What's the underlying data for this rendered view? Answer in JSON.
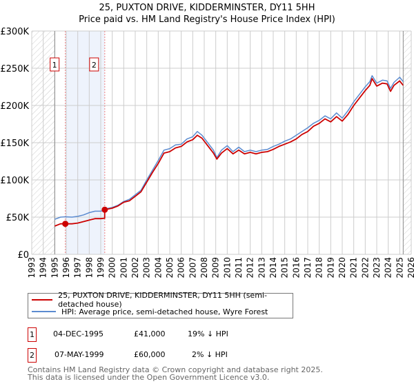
{
  "title_line1": "25, PUXTON DRIVE, KIDDERMINSTER, DY11 5HH",
  "title_line2": "Price paid vs. HM Land Registry's House Price Index (HPI)",
  "legend": {
    "property": "25, PUXTON DRIVE, KIDDERMINSTER, DY11 5HH (semi-detached house)",
    "hpi": "HPI: Average price, semi-detached house, Wyre Forest"
  },
  "transactions": [
    {
      "num": "1",
      "date": "04-DEC-1995",
      "price": "£41,000",
      "hpi_diff": "19% ↓ HPI"
    },
    {
      "num": "2",
      "date": "07-MAY-1999",
      "price": "£60,000",
      "hpi_diff": "2% ↓ HPI"
    }
  ],
  "footer_line1": "Contains HM Land Registry data © Crown copyright and database right 2025.",
  "footer_line2": "This data is licensed under the Open Government Licence v3.0.",
  "colors": {
    "property": "#cc0000",
    "hpi": "#5b8bd0",
    "shade": "#eef3fc"
  },
  "chart_data": {
    "type": "line",
    "xlim": [
      1993,
      2026
    ],
    "ylim": [
      0,
      300000
    ],
    "x_ticks": [
      "1993",
      "1994",
      "1995",
      "1996",
      "1997",
      "1998",
      "1999",
      "2000",
      "2001",
      "2002",
      "2003",
      "2004",
      "2005",
      "2006",
      "2007",
      "2008",
      "2009",
      "2010",
      "2011",
      "2012",
      "2013",
      "2014",
      "2015",
      "2016",
      "2017",
      "2018",
      "2019",
      "2020",
      "2021",
      "2022",
      "2023",
      "2024",
      "2025",
      "2026"
    ],
    "y_ticks": [
      {
        "value": 0,
        "label": "£0"
      },
      {
        "value": 50000,
        "label": "£50K"
      },
      {
        "value": 100000,
        "label": "£100K"
      },
      {
        "value": 150000,
        "label": "£150K"
      },
      {
        "value": 200000,
        "label": "£200K"
      },
      {
        "value": 250000,
        "label": "£250K"
      },
      {
        "value": 300000,
        "label": "£300K"
      }
    ],
    "hatched_ranges": [
      [
        1993,
        1995
      ],
      [
        2025.3,
        2026
      ]
    ],
    "shaded_range": [
      1995.92,
      1999.35
    ],
    "sales": [
      {
        "label": "1",
        "x": 1995.92,
        "y": 41000
      },
      {
        "label": "2",
        "x": 1999.35,
        "y": 60000
      }
    ],
    "x": [
      1995.0,
      1995.5,
      1995.92,
      1996.5,
      1997.0,
      1997.5,
      1998.0,
      1998.5,
      1999.0,
      1999.34,
      1999.35,
      2000.0,
      2000.5,
      2001.0,
      2001.5,
      2002.0,
      2002.5,
      2003.0,
      2003.5,
      2004.0,
      2004.5,
      2005.0,
      2005.5,
      2006.0,
      2006.5,
      2007.0,
      2007.4,
      2007.8,
      2008.3,
      2008.8,
      2009.1,
      2009.5,
      2010.0,
      2010.5,
      2011.0,
      2011.5,
      2012.0,
      2012.5,
      2013.0,
      2013.5,
      2014.0,
      2014.5,
      2015.0,
      2015.5,
      2016.0,
      2016.5,
      2017.0,
      2017.5,
      2018.0,
      2018.5,
      2019.0,
      2019.5,
      2020.0,
      2020.5,
      2021.0,
      2021.5,
      2022.0,
      2022.4,
      2022.6,
      2023.0,
      2023.5,
      2023.9,
      2024.2,
      2024.5,
      2025.0,
      2025.3
    ],
    "series": [
      {
        "name": "25, PUXTON DRIVE, KIDDERMINSTER, DY11 5HH (semi-detached house)",
        "color": "#cc0000",
        "values": [
          38000,
          41000,
          41000,
          41000,
          42000,
          44000,
          46000,
          48000,
          48000,
          48500,
          60000,
          62000,
          65000,
          70000,
          72000,
          78000,
          84000,
          97000,
          110000,
          122000,
          136000,
          138000,
          143000,
          145000,
          151000,
          154000,
          160000,
          156000,
          146000,
          136000,
          128000,
          136000,
          142000,
          135000,
          140000,
          135000,
          137000,
          135000,
          137000,
          138000,
          141000,
          145000,
          148000,
          151000,
          155000,
          161000,
          165000,
          172000,
          176000,
          182000,
          178000,
          185000,
          179000,
          188000,
          200000,
          210000,
          220000,
          227000,
          236000,
          226000,
          230000,
          229000,
          219000,
          227000,
          233000,
          227000
        ]
      },
      {
        "name": "HPI: Average price, semi-detached house, Wyre Forest",
        "color": "#5b8bd0",
        "values": [
          47000,
          50000,
          50500,
          50000,
          51000,
          53000,
          56000,
          58000,
          58000,
          59000,
          61000,
          63000,
          66000,
          71000,
          74000,
          80000,
          86000,
          100000,
          113000,
          126000,
          140000,
          142000,
          147000,
          148000,
          155000,
          158000,
          165000,
          160000,
          150000,
          140000,
          130000,
          140000,
          146000,
          138000,
          144000,
          138000,
          140000,
          138000,
          140000,
          141000,
          145000,
          148000,
          152000,
          155000,
          160000,
          165000,
          170000,
          176000,
          180000,
          186000,
          182000,
          190000,
          183000,
          193000,
          205000,
          215000,
          225000,
          232000,
          240000,
          230000,
          234000,
          233000,
          223000,
          231000,
          238000,
          232000
        ]
      }
    ]
  }
}
